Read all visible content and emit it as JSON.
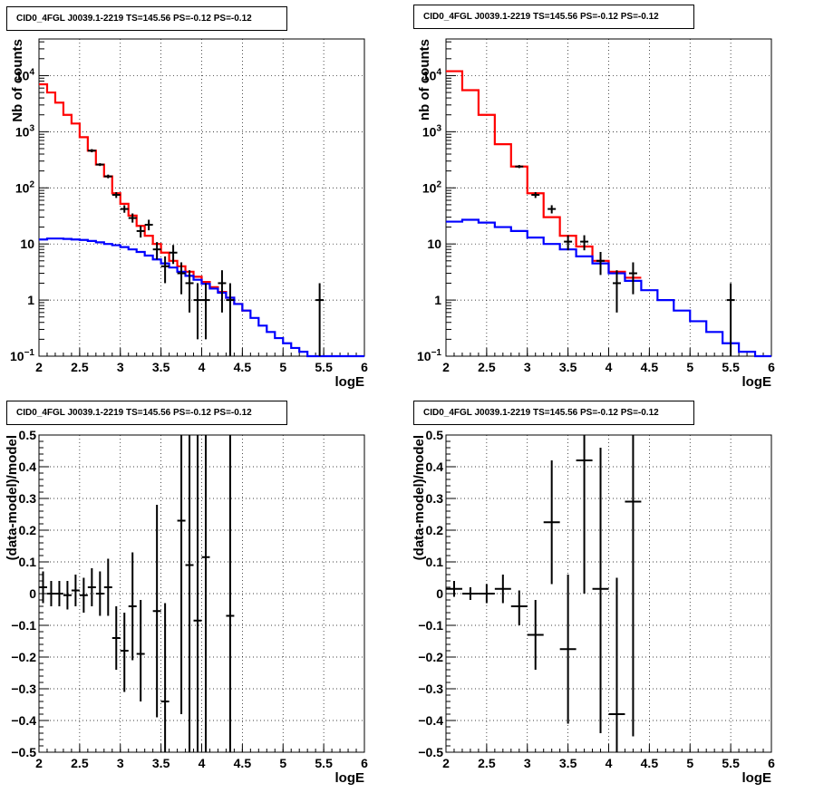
{
  "chart_data": [
    {
      "type": "line",
      "title": "CID0_4FGL J0039.1-2219 TS=145.56 PS=-0.12 PS=-0.12",
      "xlabel": "logE",
      "ylabel": "Nb of counts",
      "xlim": [
        2,
        6
      ],
      "ylim": [
        0.1,
        45000
      ],
      "yscale": "log",
      "grid": true,
      "x_ticks": [
        "2",
        "2.5",
        "3",
        "3.5",
        "4",
        "4.5",
        "5",
        "5.5",
        "6"
      ],
      "y_ticks": [
        {
          "value": 0.1,
          "base": "10",
          "exp": "−1"
        },
        {
          "value": 1,
          "label": "1"
        },
        {
          "value": 10,
          "label": "10"
        },
        {
          "value": 100,
          "base": "10",
          "exp": "2"
        },
        {
          "value": 1000,
          "base": "10",
          "exp": "3"
        },
        {
          "value": 10000,
          "base": "10",
          "exp": "4"
        }
      ],
      "bin_edges": [
        2.0,
        2.1,
        2.2,
        2.3,
        2.4,
        2.5,
        2.6,
        2.7,
        2.8,
        2.9,
        3.0,
        3.1,
        3.2,
        3.3,
        3.4,
        3.5,
        3.6,
        3.7,
        3.8,
        3.9,
        4.0,
        4.1,
        4.2,
        4.3,
        4.4,
        4.5,
        4.6,
        4.7,
        4.8,
        4.9,
        5.0,
        5.1,
        5.2,
        5.3,
        5.4,
        5.5,
        5.6,
        5.7,
        5.8,
        5.9,
        6.0
      ],
      "series": [
        {
          "name": "",
          "color": "#ff0000",
          "style": "hist",
          "values": [
            7000,
            5000,
            3300,
            2000,
            1400,
            800,
            460,
            260,
            160,
            80,
            52,
            32,
            21,
            14,
            10,
            7,
            5,
            4,
            3.2,
            2.6,
            2.1,
            1.7,
            1.4,
            1.1,
            0.85,
            0.65
          ]
        },
        {
          "name": "",
          "color": "#0000ff",
          "style": "hist",
          "values": [
            12,
            12.5,
            12.5,
            12.3,
            12,
            11.8,
            11.3,
            10.7,
            10,
            9.5,
            8.8,
            8,
            7.2,
            6.2,
            5.3,
            4.5,
            3.8,
            3.2,
            2.7,
            2.3,
            1.95,
            1.6,
            1.35,
            1.1,
            0.85,
            0.65,
            0.48,
            0.35,
            0.27,
            0.21,
            0.17,
            0.14,
            0.12,
            0.1,
            0.1,
            0.1,
            0.1,
            0.1,
            0.1,
            0.1
          ]
        },
        {
          "name": "",
          "color": "#000000",
          "style": "points",
          "points": [
            {
              "x": 2.65,
              "y": 460,
              "lo": 430,
              "hi": 490
            },
            {
              "x": 2.75,
              "y": 260,
              "lo": 245,
              "hi": 275
            },
            {
              "x": 2.85,
              "y": 160,
              "lo": 148,
              "hi": 172
            },
            {
              "x": 2.95,
              "y": 75,
              "lo": 66,
              "hi": 84
            },
            {
              "x": 3.05,
              "y": 42,
              "lo": 36,
              "hi": 49
            },
            {
              "x": 3.15,
              "y": 29,
              "lo": 24,
              "hi": 35
            },
            {
              "x": 3.25,
              "y": 17,
              "lo": 13,
              "hi": 21
            },
            {
              "x": 3.35,
              "y": 22,
              "lo": 17.5,
              "hi": 27
            },
            {
              "x": 3.45,
              "y": 8,
              "lo": 5.3,
              "hi": 10.8
            },
            {
              "x": 3.55,
              "y": 4,
              "lo": 2,
              "hi": 6
            },
            {
              "x": 3.65,
              "y": 7,
              "lo": 4.4,
              "hi": 9.6
            },
            {
              "x": 3.75,
              "y": 3,
              "lo": 1.27,
              "hi": 4.7
            },
            {
              "x": 3.85,
              "y": 2,
              "lo": 0.6,
              "hi": 3.4
            },
            {
              "x": 3.95,
              "y": 1,
              "lo": 0.2,
              "hi": 2
            },
            {
              "x": 4.05,
              "y": 1,
              "lo": 0.2,
              "hi": 2
            },
            {
              "x": 4.25,
              "y": 2,
              "lo": 0.6,
              "hi": 3.4
            },
            {
              "x": 4.35,
              "y": 1,
              "lo": 0.1,
              "hi": 2
            },
            {
              "x": 5.45,
              "y": 1,
              "lo": 0.1,
              "hi": 2
            }
          ]
        }
      ]
    },
    {
      "type": "line",
      "title": "CID0_4FGL J0039.1-2219 TS=145.56 PS=-0.12 PS=-0.12",
      "xlabel": "logE",
      "ylabel": "nb of counts",
      "xlim": [
        2,
        6
      ],
      "ylim": [
        0.1,
        45000
      ],
      "yscale": "log",
      "grid": true,
      "x_ticks": [
        "2",
        "2.5",
        "3",
        "3.5",
        "4",
        "4.5",
        "5",
        "5.5",
        "6"
      ],
      "y_ticks": [
        {
          "value": 0.1,
          "base": "10",
          "exp": "−1"
        },
        {
          "value": 1,
          "label": "1"
        },
        {
          "value": 10,
          "label": "10"
        },
        {
          "value": 100,
          "base": "10",
          "exp": "2"
        },
        {
          "value": 1000,
          "base": "10",
          "exp": "3"
        },
        {
          "value": 10000,
          "base": "10",
          "exp": "4"
        }
      ],
      "bin_edges": [
        2.0,
        2.2,
        2.4,
        2.6,
        2.8,
        3.0,
        3.2,
        3.4,
        3.6,
        3.8,
        4.0,
        4.2,
        4.4,
        4.6,
        4.8,
        5.0,
        5.2,
        5.4,
        5.6,
        5.8,
        6.0
      ],
      "series": [
        {
          "name": "",
          "color": "#ff0000",
          "style": "hist",
          "values": [
            12000,
            5500,
            2000,
            600,
            240,
            80,
            30,
            14,
            9,
            5,
            3.2,
            2.5
          ]
        },
        {
          "name": "",
          "color": "#0000ff",
          "style": "hist",
          "values": [
            25,
            27,
            24,
            20,
            17,
            13,
            10,
            8,
            6,
            4.5,
            3,
            2.2,
            1.5,
            1,
            0.65,
            0.42,
            0.27,
            0.17,
            0.12,
            0.1
          ]
        },
        {
          "name": "",
          "color": "#000000",
          "style": "points",
          "points": [
            {
              "x": 2.9,
              "y": 240,
              "lo": 225,
              "hi": 255
            },
            {
              "x": 3.1,
              "y": 75,
              "lo": 66,
              "hi": 84
            },
            {
              "x": 3.3,
              "y": 42,
              "lo": 35,
              "hi": 49
            },
            {
              "x": 3.5,
              "y": 11,
              "lo": 7.7,
              "hi": 14.3
            },
            {
              "x": 3.7,
              "y": 11,
              "lo": 7.7,
              "hi": 14.3
            },
            {
              "x": 3.9,
              "y": 5,
              "lo": 2.8,
              "hi": 7.2
            },
            {
              "x": 4.1,
              "y": 2,
              "lo": 0.6,
              "hi": 3.4
            },
            {
              "x": 4.3,
              "y": 3,
              "lo": 1.27,
              "hi": 4.7
            },
            {
              "x": 5.5,
              "y": 1,
              "lo": 0.1,
              "hi": 2
            }
          ]
        }
      ]
    },
    {
      "type": "scatter",
      "title": "CID0_4FGL J0039.1-2219 TS=145.56 PS=-0.12 PS=-0.12",
      "xlabel": "logE",
      "ylabel": "(data-model)/model",
      "xlim": [
        2,
        6
      ],
      "ylim": [
        -0.5,
        0.5
      ],
      "grid": true,
      "x_ticks": [
        "2",
        "2.5",
        "3",
        "3.5",
        "4",
        "4.5",
        "5",
        "5.5",
        "6"
      ],
      "y_ticks": [
        "−0.5",
        "−0.4",
        "−0.3",
        "−0.2",
        "−0.1",
        "0",
        "0.1",
        "0.2",
        "0.3",
        "0.4",
        "0.5"
      ],
      "x_bin_halfwidth": 0.05,
      "series": [
        {
          "name": "",
          "color": "#000000",
          "points": [
            {
              "x": 2.05,
              "y": 0.02,
              "lo": -0.03,
              "hi": 0.07
            },
            {
              "x": 2.15,
              "y": 0.0,
              "lo": -0.04,
              "hi": 0.04
            },
            {
              "x": 2.25,
              "y": 0.0,
              "lo": -0.04,
              "hi": 0.04
            },
            {
              "x": 2.35,
              "y": -0.005,
              "lo": -0.05,
              "hi": 0.04
            },
            {
              "x": 2.45,
              "y": 0.01,
              "lo": -0.04,
              "hi": 0.06
            },
            {
              "x": 2.55,
              "y": -0.005,
              "lo": -0.06,
              "hi": 0.05
            },
            {
              "x": 2.65,
              "y": 0.02,
              "lo": -0.04,
              "hi": 0.08
            },
            {
              "x": 2.75,
              "y": 0.0,
              "lo": -0.07,
              "hi": 0.07
            },
            {
              "x": 2.85,
              "y": 0.02,
              "lo": -0.07,
              "hi": 0.11
            },
            {
              "x": 2.95,
              "y": -0.14,
              "lo": -0.24,
              "hi": -0.04
            },
            {
              "x": 3.05,
              "y": -0.18,
              "lo": -0.31,
              "hi": -0.06
            },
            {
              "x": 3.15,
              "y": -0.04,
              "lo": -0.21,
              "hi": 0.13
            },
            {
              "x": 3.25,
              "y": -0.19,
              "lo": -0.34,
              "hi": -0.02
            },
            {
              "x": 3.45,
              "y": -0.055,
              "lo": -0.39,
              "hi": 0.28
            },
            {
              "x": 3.55,
              "y": -0.34,
              "lo": -0.6,
              "hi": -0.03
            },
            {
              "x": 3.75,
              "y": 0.23,
              "lo": -0.38,
              "hi": 0.5
            },
            {
              "x": 3.85,
              "y": 0.09,
              "lo": -0.6,
              "hi": 0.5
            },
            {
              "x": 3.95,
              "y": -0.085,
              "lo": -0.6,
              "hi": 0.5
            },
            {
              "x": 4.05,
              "y": 0.115,
              "lo": -0.6,
              "hi": 0.5
            },
            {
              "x": 4.35,
              "y": -0.07,
              "lo": -0.6,
              "hi": 0.5
            }
          ]
        }
      ]
    },
    {
      "type": "scatter",
      "title": "CID0_4FGL J0039.1-2219 TS=145.56 PS=-0.12 PS=-0.12",
      "xlabel": "logE",
      "ylabel": "(data-model)/model",
      "xlim": [
        2,
        6
      ],
      "ylim": [
        -0.5,
        0.5
      ],
      "grid": true,
      "x_ticks": [
        "2",
        "2.5",
        "3",
        "3.5",
        "4",
        "4.5",
        "5",
        "5.5",
        "6"
      ],
      "y_ticks": [
        "−0.5",
        "−0.4",
        "−0.3",
        "−0.2",
        "−0.1",
        "0",
        "0.1",
        "0.2",
        "0.3",
        "0.4",
        "0.5"
      ],
      "x_bin_halfwidth": 0.1,
      "series": [
        {
          "name": "",
          "color": "#000000",
          "points": [
            {
              "x": 2.1,
              "y": 0.015,
              "lo": -0.01,
              "hi": 0.04
            },
            {
              "x": 2.3,
              "y": 0.0,
              "lo": -0.02,
              "hi": 0.02
            },
            {
              "x": 2.5,
              "y": 0.0,
              "lo": -0.03,
              "hi": 0.03
            },
            {
              "x": 2.7,
              "y": 0.015,
              "lo": -0.03,
              "hi": 0.06
            },
            {
              "x": 2.9,
              "y": -0.04,
              "lo": -0.1,
              "hi": 0.01
            },
            {
              "x": 3.1,
              "y": -0.13,
              "lo": -0.24,
              "hi": -0.02
            },
            {
              "x": 3.3,
              "y": 0.225,
              "lo": 0.03,
              "hi": 0.42
            },
            {
              "x": 3.5,
              "y": -0.175,
              "lo": -0.41,
              "hi": 0.06
            },
            {
              "x": 3.7,
              "y": 0.42,
              "lo": 0.0,
              "hi": 0.5
            },
            {
              "x": 3.9,
              "y": 0.015,
              "lo": -0.44,
              "hi": 0.46
            },
            {
              "x": 4.1,
              "y": -0.38,
              "lo": -0.6,
              "hi": 0.05
            },
            {
              "x": 4.3,
              "y": 0.29,
              "lo": -0.45,
              "hi": 0.5
            }
          ]
        }
      ]
    }
  ]
}
